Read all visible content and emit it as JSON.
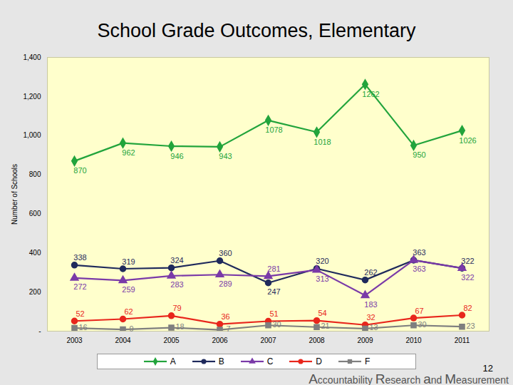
{
  "chart_data": {
    "type": "line",
    "title": "School Grade Outcomes, Elementary",
    "y_label": "Number of Schools",
    "x": [
      "2003",
      "2004",
      "2005",
      "2006",
      "2007",
      "2008",
      "2009",
      "2010",
      "2011"
    ],
    "series": [
      {
        "name": "A",
        "color": "#22a43c",
        "marker": "diamond",
        "values": [
          870,
          962,
          946,
          943,
          1078,
          1018,
          1262,
          950,
          1026
        ]
      },
      {
        "name": "B",
        "color": "#1f2a5c",
        "marker": "circle",
        "values": [
          338,
          319,
          324,
          360,
          247,
          320,
          262,
          363,
          322
        ]
      },
      {
        "name": "C",
        "color": "#7a3aa8",
        "marker": "triangle",
        "values": [
          272,
          259,
          283,
          289,
          281,
          313,
          183,
          363,
          322
        ]
      },
      {
        "name": "D",
        "color": "#e8261c",
        "marker": "circle",
        "values": [
          52,
          62,
          79,
          36,
          51,
          54,
          32,
          67,
          82
        ]
      },
      {
        "name": "F",
        "color": "#7f7f7f",
        "marker": "square",
        "values": [
          16,
          9,
          18,
          7,
          30,
          21,
          13,
          30,
          23
        ]
      }
    ],
    "ylim": [
      0,
      1400
    ],
    "yticks": [
      {
        "value": 0,
        "label": "-"
      },
      200,
      400,
      600,
      800,
      {
        "value": 1000,
        "label": "1,000"
      },
      {
        "value": 1200,
        "label": "1,200"
      },
      {
        "value": 1400,
        "label": "1,400"
      }
    ],
    "grid": false,
    "data_labels": true,
    "legend": "bottom",
    "annotations": [
      "12",
      "Accountability Research and Measurement"
    ]
  }
}
